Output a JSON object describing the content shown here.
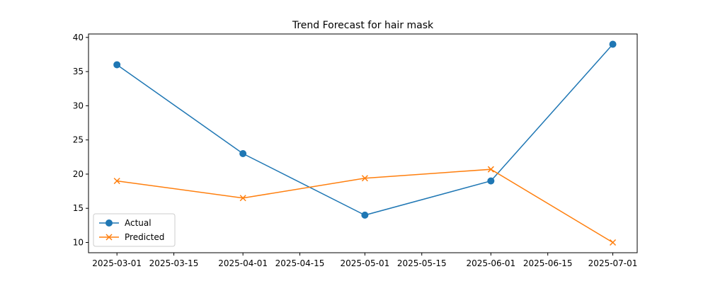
{
  "chart_data": {
    "type": "line",
    "title": "Trend Forecast for hair mask",
    "xlabel": "",
    "ylabel": "",
    "x": [
      "2025-03-01",
      "2025-04-01",
      "2025-05-01",
      "2025-06-01",
      "2025-07-01"
    ],
    "x_ticks": [
      "2025-03-01",
      "2025-03-15",
      "2025-04-01",
      "2025-04-15",
      "2025-05-01",
      "2025-05-15",
      "2025-06-01",
      "2025-06-15",
      "2025-07-01"
    ],
    "xlim": [
      "2025-02-22",
      "2025-07-07"
    ],
    "y_ticks": [
      10,
      15,
      20,
      25,
      30,
      35,
      40
    ],
    "ylim": [
      8.5,
      40.5
    ],
    "grid": false,
    "legend_position": "lower-left",
    "series": [
      {
        "name": "Actual",
        "color": "#1f77b4",
        "marker": "circle",
        "values": [
          36,
          23,
          14,
          19,
          39
        ]
      },
      {
        "name": "Predicted",
        "color": "#ff7f0e",
        "marker": "x",
        "values": [
          19,
          16.5,
          19.4,
          20.7,
          10
        ]
      }
    ]
  }
}
